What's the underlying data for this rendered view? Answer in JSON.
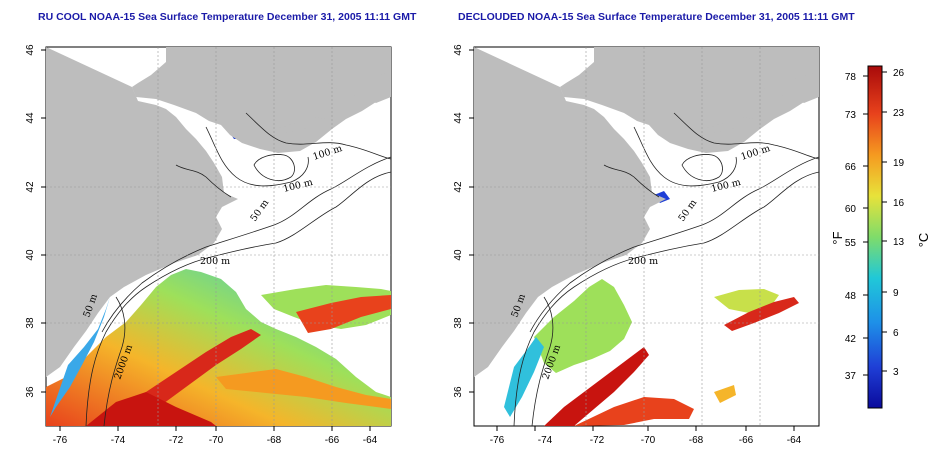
{
  "titles": {
    "left": "RU COOL NOAA-15 Sea Surface Temperature December 31, 2005 11:11 GMT",
    "right": "DECLOUDED NOAA-15 Sea Surface Temperature December 31, 2005 11:11 GMT"
  },
  "axes": {
    "lon_ticks": [
      "-76",
      "-74",
      "-72",
      "-70",
      "-68",
      "-66",
      "-64"
    ],
    "lat_ticks": [
      "36",
      "38",
      "40",
      "42",
      "44",
      "46"
    ]
  },
  "contour_labels": {
    "m100a": "100 m",
    "m100b": "100 m",
    "m50a": "50 m",
    "m200": "200 m",
    "m50b": "50 m",
    "m2000": "2000 m"
  },
  "colorbar": {
    "fahrenheit_ticks": [
      "78",
      "73",
      "66",
      "60",
      "55",
      "48",
      "42",
      "37"
    ],
    "celsius_ticks": [
      "26",
      "23",
      "19",
      "16",
      "13",
      "9",
      "6",
      "3"
    ],
    "fahrenheit_unit": "°F",
    "celsius_unit": "°C"
  },
  "colors": {
    "land": "#bdbdbd",
    "title": "#1a1aa8",
    "cold": "#1f3fd6",
    "cool": "#3aa8e8",
    "mild": "#7fdc6a",
    "warm": "#f0d23a",
    "hot": "#e8421c",
    "hottest": "#c8140f"
  }
}
